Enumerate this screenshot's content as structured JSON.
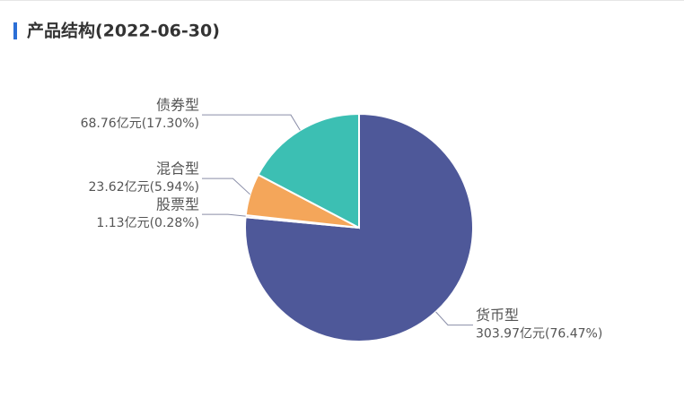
{
  "chart_data": {
    "type": "pie",
    "title": "产品结构(2022-06-30)",
    "categories": [
      "货币型",
      "股票型",
      "混合型",
      "债券型"
    ],
    "values": [
      303.97,
      1.13,
      23.62,
      68.76
    ],
    "value_labels": [
      "303.97亿元(76.47%)",
      "1.13亿元(0.28%)",
      "23.62亿元(5.94%)",
      "68.76亿元(17.30%)"
    ],
    "colors": [
      "#4e5899",
      "#e5635a",
      "#f4a65a",
      "#3cbfb3"
    ]
  }
}
